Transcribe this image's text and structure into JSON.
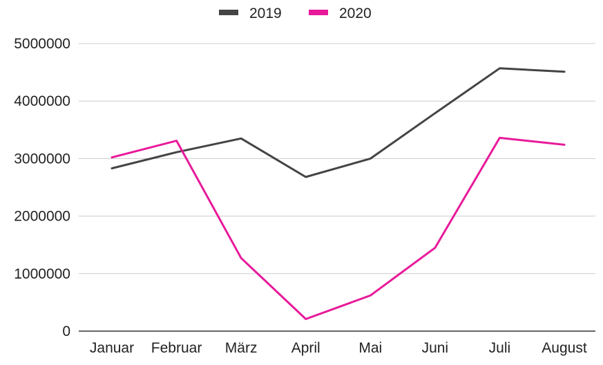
{
  "chart_data": {
    "type": "line",
    "title": "",
    "xlabel": "",
    "ylabel": "",
    "categories": [
      "Januar",
      "Februar",
      "März",
      "April",
      "Mai",
      "Juni",
      "Juli",
      "August"
    ],
    "ylim": [
      0,
      5000000
    ],
    "yticks": [
      "0",
      "1000000",
      "2000000",
      "3000000",
      "4000000",
      "5000000"
    ],
    "grid": true,
    "legend_position": "top",
    "series": [
      {
        "name": "2019",
        "color": "#444444",
        "values": [
          2830000,
          3110000,
          3350000,
          2680000,
          3000000,
          3790000,
          4570000,
          4510000
        ]
      },
      {
        "name": "2020",
        "color": "#e8199a",
        "values": [
          3020000,
          3310000,
          1270000,
          210000,
          620000,
          1450000,
          3360000,
          3240000
        ]
      }
    ]
  }
}
